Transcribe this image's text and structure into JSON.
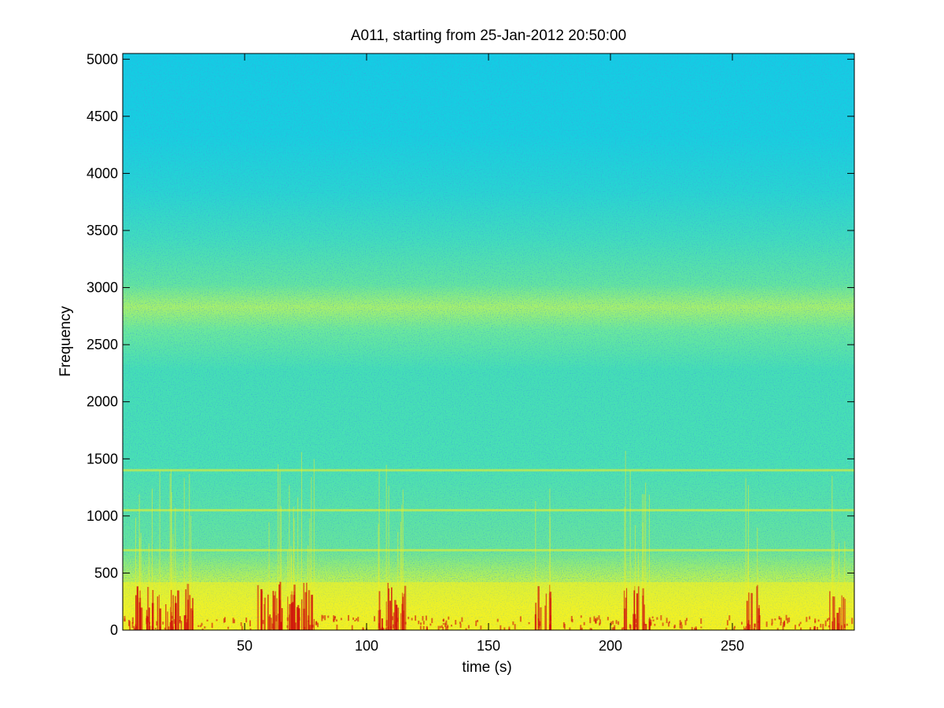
{
  "chart_data": {
    "type": "heatmap",
    "title": "A011, starting from 25-Jan-2012 20:50:00",
    "xlabel": "time (s)",
    "ylabel": "Frequency",
    "xlim": [
      0,
      300
    ],
    "ylim": [
      0,
      5050
    ],
    "x_ticks": [
      50,
      100,
      150,
      200,
      250
    ],
    "y_ticks": [
      0,
      500,
      1000,
      1500,
      2000,
      2500,
      3000,
      3500,
      4000,
      4500,
      5000
    ],
    "colormap": "jet",
    "colors": {
      "high_freq_background": "#16d0e0",
      "mid_band": "#4fe6b0",
      "band_2800": "#b8f05a",
      "low_freq": "#f5f020",
      "transients": "#d0140c"
    },
    "features": {
      "energy_band_hz": [
        2650,
        3000
      ],
      "tonal_lines_hz": [
        700,
        1050,
        1400
      ],
      "transient_bursts_s": [
        8,
        14,
        20,
        27,
        58,
        62,
        67,
        72,
        76,
        108,
        112,
        172,
        208,
        213,
        258,
        293
      ]
    }
  }
}
